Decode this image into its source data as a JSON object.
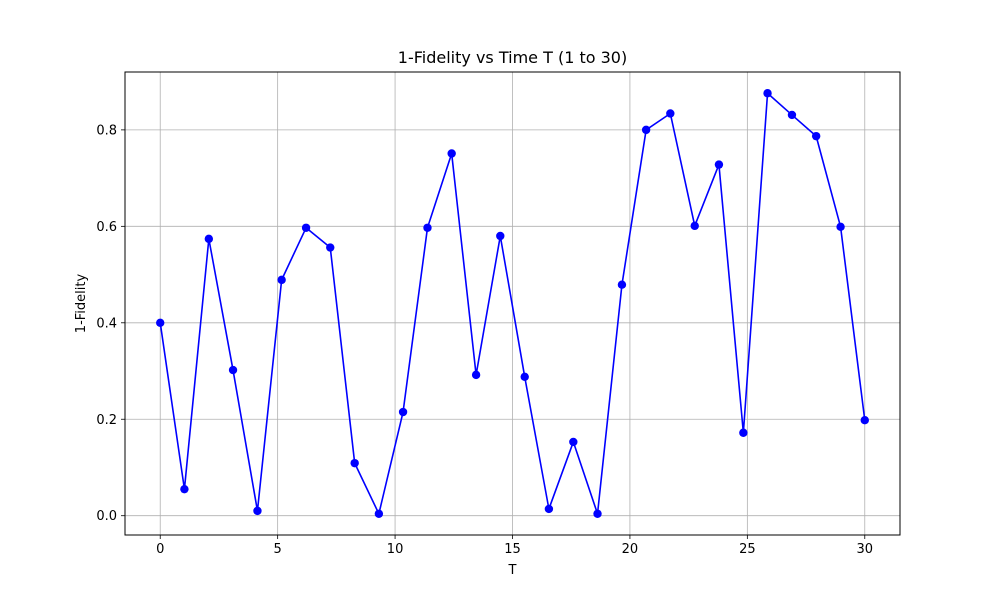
{
  "chart_data": {
    "type": "line",
    "title": "1-Fidelity vs Time T (1 to 30)",
    "xlabel": "T",
    "ylabel": "1-Fidelity",
    "xlim": [
      -1.5,
      31.5
    ],
    "ylim": [
      -0.04,
      0.92
    ],
    "xticks": [
      0,
      5,
      10,
      15,
      20,
      25,
      30
    ],
    "yticks": [
      0.0,
      0.2,
      0.4,
      0.6,
      0.8
    ],
    "ytick_labels": [
      "0.0",
      "0.2",
      "0.4",
      "0.6",
      "0.8"
    ],
    "grid": true,
    "series": [
      {
        "color": "#0000ff",
        "marker": "circle",
        "x": [
          0,
          1.03,
          2.07,
          3.1,
          4.14,
          5.17,
          6.21,
          7.24,
          8.28,
          9.31,
          10.34,
          11.38,
          12.41,
          13.45,
          14.48,
          15.52,
          16.55,
          17.59,
          18.62,
          19.66,
          20.69,
          21.72,
          22.76,
          23.79,
          24.83,
          25.86,
          26.9,
          27.93,
          28.97,
          30
        ],
        "y": [
          0.4,
          0.055,
          0.574,
          0.302,
          0.01,
          0.489,
          0.597,
          0.556,
          0.109,
          0.004,
          0.215,
          0.597,
          0.751,
          0.292,
          0.58,
          0.288,
          0.014,
          0.153,
          0.004,
          0.479,
          0.8,
          0.834,
          0.601,
          0.728,
          0.172,
          0.876,
          0.831,
          0.787,
          0.599,
          0.198
        ]
      }
    ]
  }
}
